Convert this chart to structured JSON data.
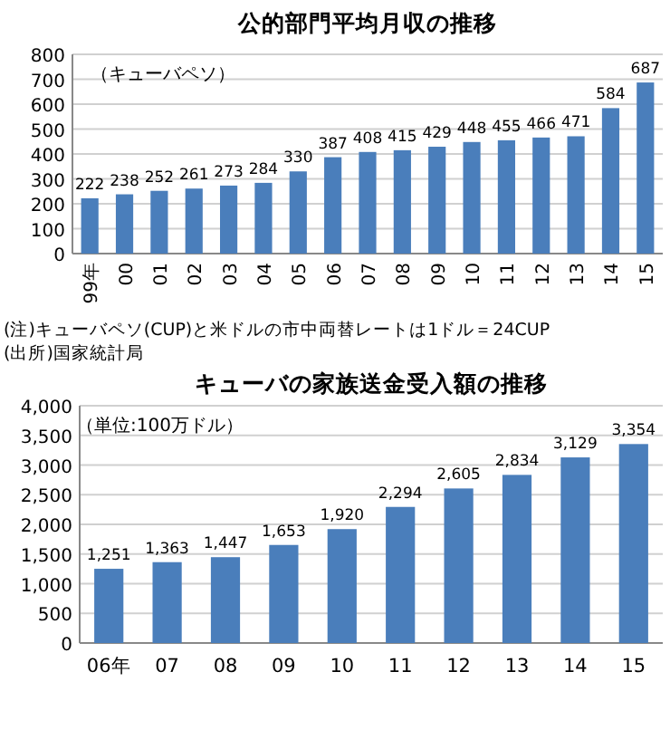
{
  "chart_data": [
    {
      "type": "bar",
      "title": "公的部門平均月収の推移",
      "categories": [
        "99年",
        "00",
        "01",
        "02",
        "03",
        "04",
        "05",
        "06",
        "07",
        "08",
        "09",
        "10",
        "11",
        "12",
        "13",
        "14",
        "15"
      ],
      "series": [
        {
          "color": "#4a7ebb",
          "values": [
            222,
            238,
            252,
            261,
            273,
            284,
            330,
            387,
            408,
            415,
            429,
            448,
            455,
            466,
            471,
            584,
            687
          ]
        }
      ],
      "ylim": [
        0,
        800
      ],
      "yticks": [
        0,
        100,
        200,
        300,
        400,
        500,
        600,
        700,
        800
      ],
      "grid": "y",
      "data_labels": true,
      "annotations": [
        "（キューバペソ）",
        "(注)キューバペソ(CUP)と米ドルの市中両替レートは1ドル＝24CUP",
        "(出所)国家統計局"
      ]
    },
    {
      "type": "bar",
      "title": "キューバの家族送金受入額の推移",
      "categories": [
        "06年",
        "07",
        "08",
        "09",
        "10",
        "11",
        "12",
        "13",
        "14",
        "15"
      ],
      "series": [
        {
          "color": "#4a7ebb",
          "values": [
            1251,
            1363,
            1447,
            1653,
            1920,
            2294,
            2605,
            2834,
            3129,
            3354
          ],
          "value_labels": [
            "1,251",
            "1,363",
            "1,447",
            "1,653",
            "1,920",
            "2,294",
            "2,605",
            "2,834",
            "3,129",
            "3,354"
          ]
        }
      ],
      "ylim": [
        0,
        4000
      ],
      "yticks": [
        {
          "value": 0,
          "label": "0"
        },
        {
          "value": 500,
          "label": "500"
        },
        {
          "value": 1000,
          "label": "1,000"
        },
        {
          "value": 1500,
          "label": "1,500"
        },
        {
          "value": 2000,
          "label": "2,000"
        },
        {
          "value": 2500,
          "label": "2,500"
        },
        {
          "value": 3000,
          "label": "3,000"
        },
        {
          "value": 3500,
          "label": "3,500"
        },
        {
          "value": 4000,
          "label": "4,000"
        }
      ],
      "grid": "y",
      "annotations": [
        "（単位:100万ドル）"
      ]
    }
  ]
}
